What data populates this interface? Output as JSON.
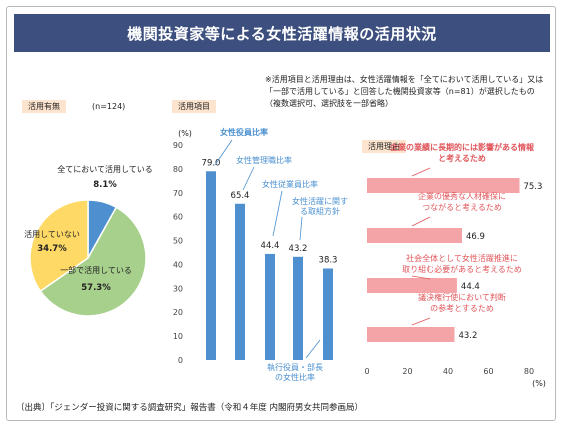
{
  "title": "機関投資家等による女性活躍情報の活用状況",
  "note": "※活用項目と活用理由は、女性活躍情報を「全てにおいて活用している」又は「一部で活用している」と回答した機関投資家等（n=81）が選択したもの（複数選択可、選択肢を一部省略）",
  "source": "〔出典〕「ジェンダー投資に関する調査研究」報告書（令和４年度 内閣府男女共同参画局）",
  "colors": {
    "title_bg": "#3c4f7e",
    "blue": "#4e8fd0",
    "green": "#a8d08d",
    "yellow": "#ffd965",
    "salmon": "#f4a4a6",
    "red_text": "#e0555a",
    "blue_text": "#4a90d0"
  },
  "chart_data": [
    {
      "type": "pie",
      "section_label": "活用有無",
      "n_label": "(n=124)",
      "slices": [
        {
          "label": "全てにおいて活用している",
          "value": 8.1,
          "value_label": "8.1%",
          "color": "#4e8fd0"
        },
        {
          "label": "一部で活用している",
          "value": 57.3,
          "value_label": "57.3%",
          "color": "#a8d08d"
        },
        {
          "label": "活用していない",
          "value": 34.7,
          "value_label": "34.7%",
          "color": "#ffd965"
        }
      ]
    },
    {
      "type": "bar",
      "section_label": "活用項目",
      "ylabel": "(%)",
      "ylim": [
        0,
        90
      ],
      "yticks": [
        0,
        10,
        20,
        30,
        40,
        50,
        60,
        70,
        80,
        90
      ],
      "color": "#4e8fd0",
      "categories": [
        "女性役員比率",
        "女性管理職比率",
        "女性従業員比率",
        "女性活躍に関する取組方針",
        "執行役員・部長の女性比率"
      ],
      "values": [
        79.0,
        65.4,
        44.4,
        43.2,
        38.3
      ],
      "value_labels": [
        "79.0",
        "65.4",
        "44.4",
        "43.2",
        "38.3"
      ]
    },
    {
      "type": "bar",
      "orientation": "horizontal",
      "section_label": "活用理由",
      "xlabel": "(%)",
      "xlim": [
        0,
        80
      ],
      "xticks": [
        0,
        20,
        40,
        60,
        80
      ],
      "color": "#f4a4a6",
      "categories": [
        "企業の業績に長期的には影響がある情報と考えるため",
        "企業の優秀な人材確保につながると考えるため",
        "社会全体として女性活躍推進に取り組む必要があると考えるため",
        "議決権行使において判断の参考とするため"
      ],
      "values": [
        75.3,
        46.9,
        44.4,
        43.2
      ],
      "value_labels": [
        "75.3",
        "46.9",
        "44.4",
        "43.2"
      ]
    }
  ]
}
